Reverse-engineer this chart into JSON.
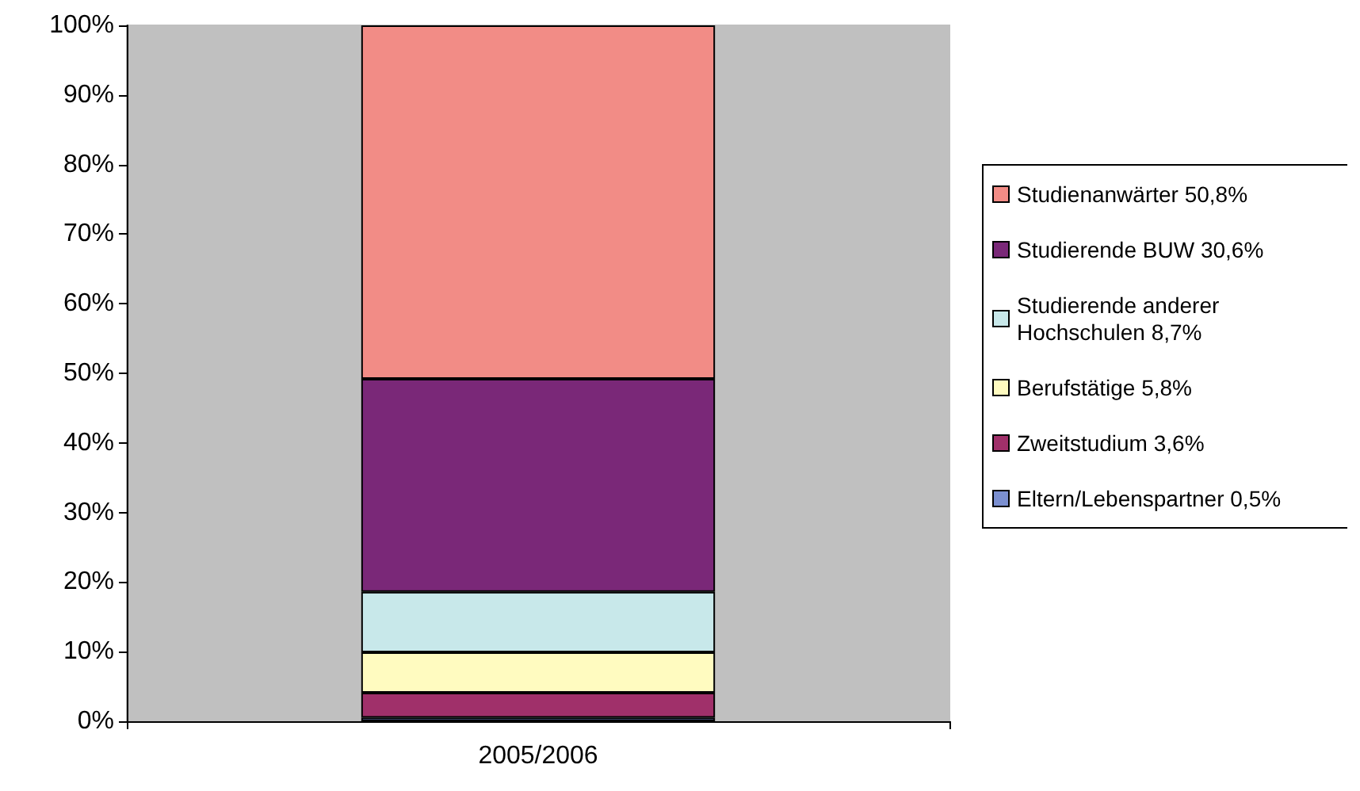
{
  "chart_data": {
    "type": "bar",
    "stacked": true,
    "categories": [
      "2005/2006"
    ],
    "series": [
      {
        "name": "Eltern/Lebenspartner 0,5%",
        "color": "#7b8fd0",
        "values": [
          0.5
        ]
      },
      {
        "name": "Zweitstudium 3,6%",
        "color": "#a0306a",
        "values": [
          3.6
        ]
      },
      {
        "name": "Berufstätige 5,8%",
        "color": "#fffbc0",
        "values": [
          5.8
        ]
      },
      {
        "name": "Studierende anderer Hochschulen 8,7%",
        "color": "#c8e8ea",
        "values": [
          8.7
        ]
      },
      {
        "name": "Studierende BUW 30,6%",
        "color": "#7a2878",
        "values": [
          30.6
        ]
      },
      {
        "name": "Studienanwärter 50,8%",
        "color": "#f28c86",
        "values": [
          50.8
        ]
      }
    ],
    "ylim": [
      0,
      100
    ],
    "yticks": [
      {
        "value": 0,
        "label": "0%"
      },
      {
        "value": 10,
        "label": "10%"
      },
      {
        "value": 20,
        "label": "20%"
      },
      {
        "value": 30,
        "label": "30%"
      },
      {
        "value": 40,
        "label": "40%"
      },
      {
        "value": 50,
        "label": "50%"
      },
      {
        "value": 60,
        "label": "60%"
      },
      {
        "value": 70,
        "label": "70%"
      },
      {
        "value": 80,
        "label": "80%"
      },
      {
        "value": 90,
        "label": "90%"
      },
      {
        "value": 100,
        "label": "100%"
      }
    ],
    "grid": false,
    "legend": "right"
  }
}
